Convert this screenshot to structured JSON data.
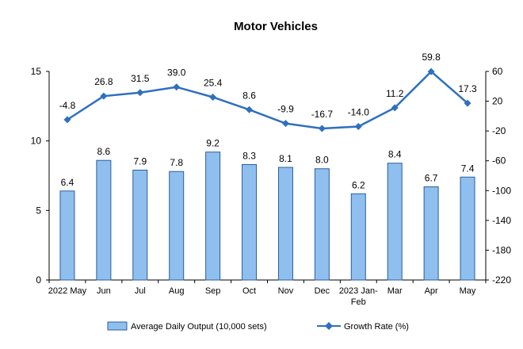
{
  "chart_data": {
    "type": "bar+line",
    "title": "Motor Vehicles",
    "categories": [
      [
        "2022 May"
      ],
      [
        "Jun"
      ],
      [
        "Jul"
      ],
      [
        "Aug"
      ],
      [
        "Sep"
      ],
      [
        "Oct"
      ],
      [
        "Nov"
      ],
      [
        "Dec"
      ],
      [
        "2023 Jan-",
        "Feb"
      ],
      [
        "Mar"
      ],
      [
        "Apr"
      ],
      [
        "May"
      ]
    ],
    "series": [
      {
        "name": "Average Daily Output (10,000 sets)",
        "type": "bar",
        "axis": "left",
        "color": "#8fbfef",
        "values": [
          6.4,
          8.6,
          7.9,
          7.8,
          9.2,
          8.3,
          8.1,
          8.0,
          6.2,
          8.4,
          6.7,
          7.4
        ],
        "labels": [
          "6.4",
          "8.6",
          "7.9",
          "7.8",
          "9.2",
          "8.3",
          "8.1",
          "8.0",
          "6.2",
          "8.4",
          "6.7",
          "7.4"
        ]
      },
      {
        "name": "Growth Rate (%)",
        "type": "line",
        "axis": "right",
        "color": "#2f6fc0",
        "values": [
          -4.8,
          26.8,
          31.5,
          39.0,
          25.4,
          8.6,
          -9.9,
          -16.7,
          -14.0,
          11.2,
          59.8,
          17.3
        ],
        "labels": [
          "-4.8",
          "26.8",
          "31.5",
          "39.0",
          "25.4",
          "8.6",
          "-9.9",
          "-16.7",
          "-14.0",
          "11.2",
          "59.8",
          "17.3"
        ]
      }
    ],
    "y_left": {
      "min": 0,
      "max": 15,
      "ticks": [
        "0",
        "5",
        "10",
        "15"
      ]
    },
    "y_right": {
      "min": -220,
      "max": 60,
      "ticks": [
        "60",
        "20",
        "-20",
        "-60",
        "-100",
        "-140",
        "-180",
        "-220"
      ]
    },
    "grid": false,
    "legend_position": "bottom"
  }
}
